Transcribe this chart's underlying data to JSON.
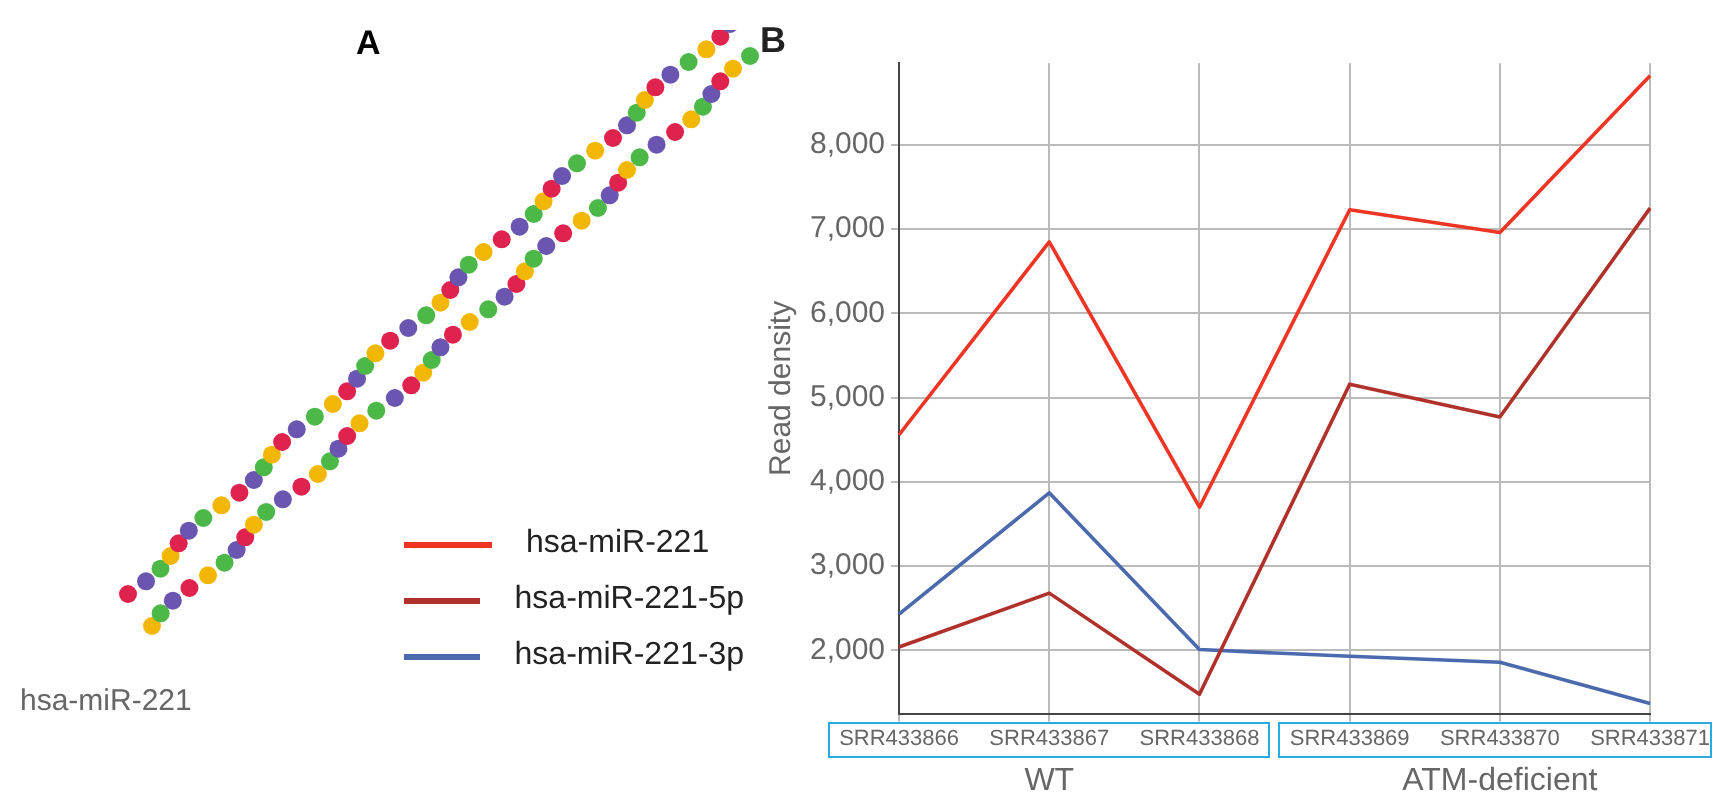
{
  "chart_data": [
    {
      "type": "other",
      "title": "A",
      "annotations": [
        "hsa-miR-221"
      ]
    },
    {
      "type": "line",
      "title": "B",
      "ylabel": "Read density",
      "categories": [
        "SRR433866",
        "SRR433867",
        "SRR433868",
        "SRR433869",
        "SRR433870",
        "SRR433871"
      ],
      "series": [
        {
          "name": "hsa-miR-221",
          "color": "#ee3524",
          "values": [
            4560,
            6850,
            3700,
            7230,
            6960,
            8820
          ]
        },
        {
          "name": "hsa-miR-221-5p",
          "color": "#b0312a",
          "values": [
            2040,
            2680,
            1480,
            5160,
            4770,
            7250
          ]
        },
        {
          "name": "hsa-miR-221-3p",
          "color": "#4a6aad",
          "values": [
            2430,
            3870,
            2010,
            1930,
            1860,
            1370
          ]
        }
      ],
      "ylim": [
        1250,
        8970
      ],
      "yticks": [
        {
          "value": 2000,
          "label": "2,000"
        },
        {
          "value": 3000,
          "label": "3,000"
        },
        {
          "value": 4000,
          "label": "4,000"
        },
        {
          "value": 5000,
          "label": "5,000"
        },
        {
          "value": 6000,
          "label": "6,000"
        },
        {
          "value": 7000,
          "label": "7,000"
        },
        {
          "value": 8000,
          "label": "8,000"
        }
      ],
      "grid": true,
      "legend": "left",
      "marker": "none",
      "line_style": "solid",
      "annotations": [
        "WT",
        "ATM-deficient"
      ]
    }
  ]
}
